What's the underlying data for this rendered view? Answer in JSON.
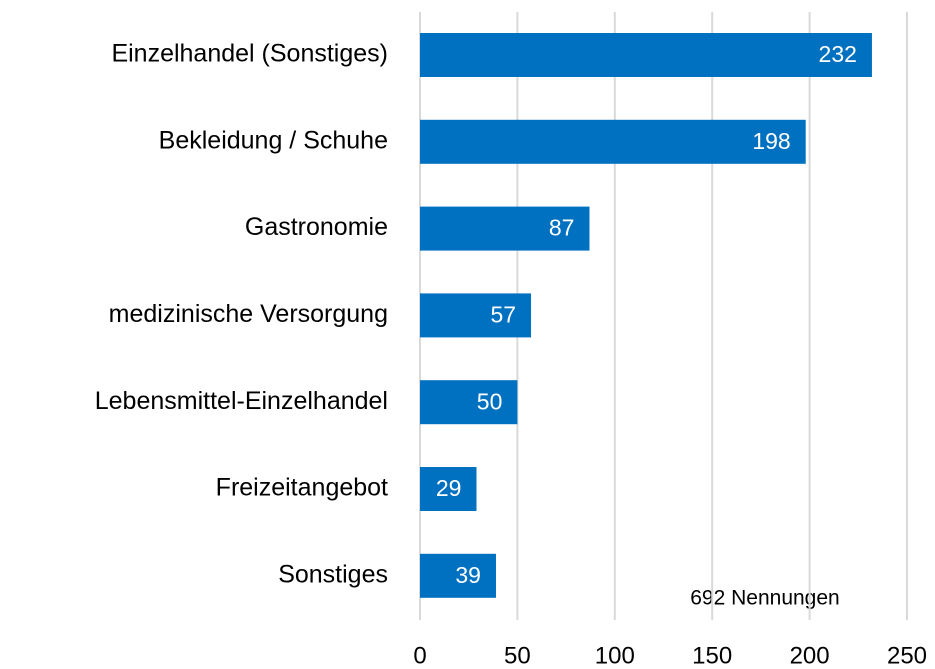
{
  "chart_data": {
    "type": "barh",
    "categories": [
      "Einzelhandel (Sonstiges)",
      "Bekleidung / Schuhe",
      "Gastronomie",
      "medizinische Versorgung",
      "Lebensmittel-Einzelhandel",
      "Freizeitangebot",
      "Sonstiges"
    ],
    "values": [
      232,
      198,
      87,
      57,
      50,
      29,
      39
    ],
    "color": "#0070c0",
    "xlim": [
      0,
      250
    ],
    "xticks": [
      0,
      50,
      100,
      150,
      200,
      250
    ],
    "grid": true,
    "annotation": "692 Nennungen"
  }
}
